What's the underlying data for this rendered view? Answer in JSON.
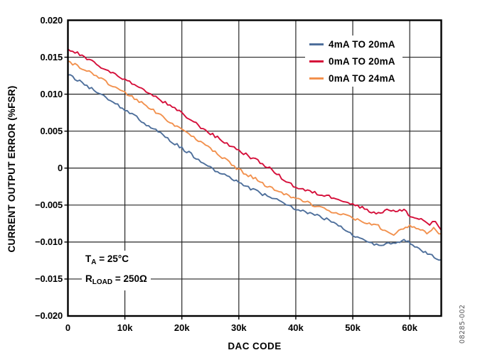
{
  "watermark": "08285-002",
  "annotation": {
    "line1": {
      "pre": "T",
      "sub": "A",
      "post": " = 25°C"
    },
    "line2": {
      "pre": "R",
      "sub": "LOAD",
      "post": " = 250Ω"
    }
  },
  "colors": {
    "axis": "#000000",
    "grid": "#262626",
    "background": "#ffffff",
    "watermark": "#58585a"
  },
  "chart_data": {
    "type": "line",
    "title": "",
    "xlabel": "DAC CODE",
    "ylabel": "CURRENT OUTPUT ERROR (%FSR)",
    "xlim": [
      0,
      65535
    ],
    "ylim": [
      -0.02,
      0.02
    ],
    "grid": true,
    "legend_position": "top-right",
    "noise_amplitude": 0.00022,
    "x_ticks": [
      {
        "value": 0,
        "label": "0"
      },
      {
        "value": 10000,
        "label": "10k"
      },
      {
        "value": 20000,
        "label": "20k"
      },
      {
        "value": 30000,
        "label": "30k"
      },
      {
        "value": 40000,
        "label": "40k"
      },
      {
        "value": 50000,
        "label": "50k"
      },
      {
        "value": 60000,
        "label": "60k"
      }
    ],
    "y_ticks": [
      {
        "value": 0.02,
        "label": "0.020"
      },
      {
        "value": 0.015,
        "label": "0.015"
      },
      {
        "value": 0.01,
        "label": "0.010"
      },
      {
        "value": 0.005,
        "label": "0.005"
      },
      {
        "value": 0,
        "label": "0"
      },
      {
        "value": -0.005,
        "label": "−0.005"
      },
      {
        "value": -0.01,
        "label": "−0.010"
      },
      {
        "value": -0.015,
        "label": "−0.015"
      },
      {
        "value": -0.02,
        "label": "−0.020"
      }
    ],
    "series": [
      {
        "name": "4mA TO 20mA",
        "color": "#4e6f9b",
        "points": [
          [
            0,
            0.0126
          ],
          [
            2500,
            0.0115
          ],
          [
            5000,
            0.0104
          ],
          [
            7500,
            0.0092
          ],
          [
            10000,
            0.0079
          ],
          [
            12500,
            0.0066
          ],
          [
            15000,
            0.0053
          ],
          [
            17500,
            0.004
          ],
          [
            20000,
            0.0027
          ],
          [
            22500,
            0.0014
          ],
          [
            25000,
            0.0001
          ],
          [
            27500,
            -0.001
          ],
          [
            30000,
            -0.0019
          ],
          [
            32500,
            -0.0029
          ],
          [
            35000,
            -0.0038
          ],
          [
            37500,
            -0.0046
          ],
          [
            40000,
            -0.0055
          ],
          [
            42500,
            -0.0061
          ],
          [
            45000,
            -0.0068
          ],
          [
            47500,
            -0.0078
          ],
          [
            50000,
            -0.0091
          ],
          [
            52500,
            -0.01
          ],
          [
            55000,
            -0.0104
          ],
          [
            57500,
            -0.0101
          ],
          [
            59000,
            -0.0096
          ],
          [
            60500,
            -0.0103
          ],
          [
            62000,
            -0.0113
          ],
          [
            63500,
            -0.0117
          ],
          [
            65535,
            -0.0124
          ]
        ]
      },
      {
        "name": "0mA TO 20mA",
        "color": "#d50f3a",
        "points": [
          [
            0,
            0.0161
          ],
          [
            2500,
            0.0152
          ],
          [
            5000,
            0.014
          ],
          [
            7500,
            0.013
          ],
          [
            10000,
            0.012
          ],
          [
            12500,
            0.0108
          ],
          [
            15000,
            0.0098
          ],
          [
            17500,
            0.0086
          ],
          [
            20000,
            0.0074
          ],
          [
            22500,
            0.006
          ],
          [
            25000,
            0.0047
          ],
          [
            27500,
            0.0035
          ],
          [
            30000,
            0.0024
          ],
          [
            32500,
            0.0013
          ],
          [
            35000,
            0.0002
          ],
          [
            37500,
            -0.0013
          ],
          [
            40000,
            -0.0026
          ],
          [
            42500,
            -0.0032
          ],
          [
            45000,
            -0.0037
          ],
          [
            47500,
            -0.0041
          ],
          [
            50000,
            -0.0049
          ],
          [
            52500,
            -0.0056
          ],
          [
            54500,
            -0.0062
          ],
          [
            56000,
            -0.0055
          ],
          [
            57500,
            -0.0059
          ],
          [
            59000,
            -0.0057
          ],
          [
            60500,
            -0.0067
          ],
          [
            62000,
            -0.0069
          ],
          [
            63500,
            -0.0076
          ],
          [
            64500,
            -0.0072
          ],
          [
            65535,
            -0.0084
          ]
        ]
      },
      {
        "name": "0mA TO 24mA",
        "color": "#f2914e",
        "points": [
          [
            0,
            0.0145
          ],
          [
            2500,
            0.0135
          ],
          [
            5000,
            0.0125
          ],
          [
            7500,
            0.0113
          ],
          [
            10000,
            0.0102
          ],
          [
            12500,
            0.009
          ],
          [
            15000,
            0.0078
          ],
          [
            17500,
            0.0065
          ],
          [
            20000,
            0.0051
          ],
          [
            22500,
            0.0039
          ],
          [
            25000,
            0.0026
          ],
          [
            27500,
            0.0012
          ],
          [
            30000,
            -0.0002
          ],
          [
            32500,
            -0.0013
          ],
          [
            35000,
            -0.0024
          ],
          [
            37500,
            -0.0033
          ],
          [
            40000,
            -0.0041
          ],
          [
            42500,
            -0.0048
          ],
          [
            45000,
            -0.0055
          ],
          [
            47500,
            -0.0061
          ],
          [
            50000,
            -0.0068
          ],
          [
            52500,
            -0.0075
          ],
          [
            54500,
            -0.0079
          ],
          [
            56000,
            -0.0086
          ],
          [
            57200,
            -0.009
          ],
          [
            58500,
            -0.0081
          ],
          [
            60000,
            -0.0078
          ],
          [
            61500,
            -0.0084
          ],
          [
            63000,
            -0.0087
          ],
          [
            64200,
            -0.0082
          ],
          [
            65535,
            -0.0089
          ]
        ]
      }
    ]
  }
}
